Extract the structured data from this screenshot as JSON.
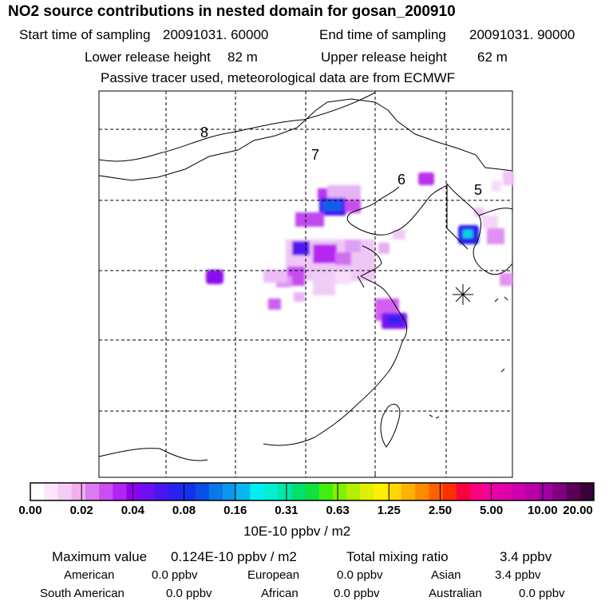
{
  "title": "NO2 source contributions in nested domain for gosan_200910",
  "header": {
    "start_label": "Start time of sampling",
    "start_value": "20091031. 60000",
    "end_label": "End time of sampling",
    "end_value": "20091031. 90000",
    "lower_label": "Lower release height",
    "lower_value": "82 m",
    "upper_label": "Upper release height",
    "upper_value": "62 m",
    "note": "Passive tracer used, meteorological data are from ECMWF"
  },
  "map": {
    "region_labels": [
      "8",
      "7",
      "6",
      "5"
    ],
    "receptor_marker": "star-marker"
  },
  "colorbar": {
    "ticks": [
      "0.00",
      "0.02",
      "0.04",
      "0.08",
      "0.16",
      "0.31",
      "0.63",
      "1.25",
      "2.50",
      "5.00",
      "10.00",
      "20.00"
    ],
    "unit": "10E-10 ppbv / m2",
    "colors": [
      "#ffffff",
      "#fbe6fb",
      "#f5ccf5",
      "#efb0f2",
      "#d97cf0",
      "#c94ef0",
      "#b323f2",
      "#9000f0",
      "#6a11f2",
      "#4a16f0",
      "#2a20f2",
      "#1430e8",
      "#0a4ee6",
      "#0a78e8",
      "#0a98ec",
      "#06b8f0",
      "#00f0f0",
      "#00f0d0",
      "#00e8a8",
      "#00e070",
      "#10e040",
      "#40ee10",
      "#80f000",
      "#b0f000",
      "#e0f000",
      "#fff000",
      "#ffd800",
      "#ffb000",
      "#ff8c00",
      "#ff6000",
      "#ff3000",
      "#ff0040",
      "#ff0080",
      "#f000a0",
      "#e000a8",
      "#d000b0",
      "#b800a8",
      "#a000a0",
      "#800080",
      "#5a0058",
      "#3a0038"
    ]
  },
  "summary": {
    "max_label": "Maximum value",
    "max_value": "0.124E-10 ppbv / m2",
    "total_label": "Total mixing ratio",
    "total_value": "3.4 ppbv",
    "rows": [
      [
        {
          "name": "American",
          "value": "0.0 ppbv"
        },
        {
          "name": "European",
          "value": "0.0 ppbv"
        },
        {
          "name": "Asian",
          "value": "3.4 ppbv"
        }
      ],
      [
        {
          "name": "South American",
          "value": "0.0 ppbv"
        },
        {
          "name": "African",
          "value": "0.0 ppbv"
        },
        {
          "name": "Australian",
          "value": "0.0 ppbv"
        }
      ]
    ]
  }
}
